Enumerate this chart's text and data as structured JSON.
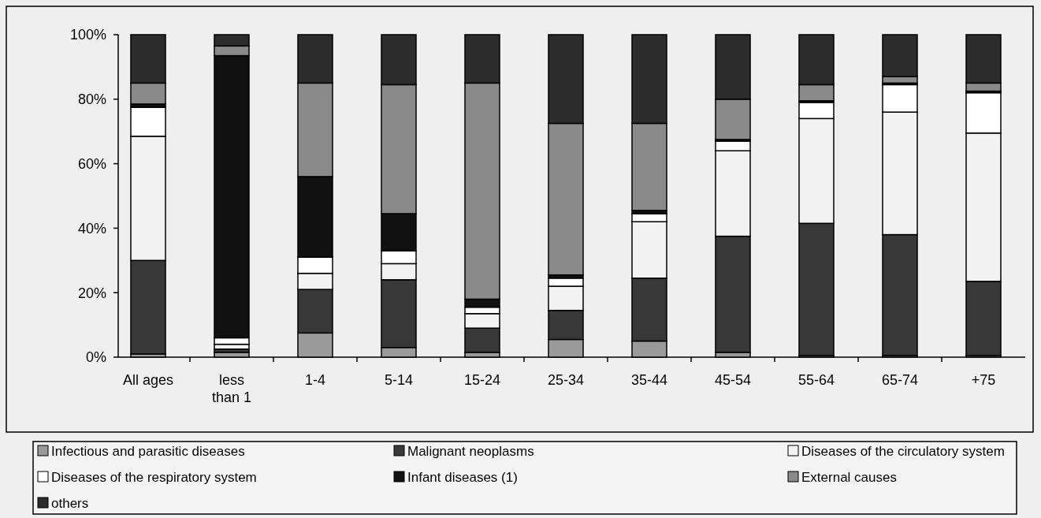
{
  "chart_data": {
    "type": "bar",
    "stacked": true,
    "categories": [
      "All ages",
      "less than 1",
      "1-4",
      "5-14",
      "15-24",
      "25-34",
      "35-44",
      "45-54",
      "55-64",
      "65-74",
      "+75"
    ],
    "series": [
      {
        "name": "Infectious and parasitic diseases",
        "color": "#9a9a9a",
        "values": [
          1,
          1.5,
          7.5,
          3,
          1.5,
          5.5,
          5,
          1.5,
          0.5,
          0.5,
          0.5
        ]
      },
      {
        "name": "Malignant neoplasms",
        "color": "#383838",
        "values": [
          29,
          1,
          13.5,
          21,
          7.5,
          9,
          19.5,
          36,
          41,
          37.5,
          23
        ]
      },
      {
        "name": "Diseases of the circulatory system",
        "color": "#f2f2f2",
        "values": [
          38.5,
          1.5,
          5,
          5,
          4.5,
          7.5,
          17.5,
          26.5,
          32.5,
          38,
          46
        ]
      },
      {
        "name": "Diseases of the respiratory system",
        "color": "#ffffff",
        "values": [
          9,
          2,
          5,
          4,
          2,
          2.5,
          2.5,
          3,
          5,
          8.5,
          12.5
        ]
      },
      {
        "name": "Infant diseases (1)",
        "color": "#111111",
        "values": [
          1,
          87.5,
          25,
          11.5,
          2.5,
          1,
          1,
          0.5,
          0.5,
          0.5,
          0.5
        ]
      },
      {
        "name": "External causes",
        "color": "#8a8a8a",
        "values": [
          6.5,
          3,
          29,
          40,
          67,
          47,
          27,
          12.5,
          5,
          2,
          2.5
        ]
      },
      {
        "name": "others",
        "color": "#2c2c2c",
        "values": [
          15,
          3.5,
          15,
          15.5,
          15,
          27.5,
          27.5,
          20,
          15.5,
          13,
          15
        ]
      }
    ],
    "ylim": [
      0,
      100
    ],
    "yticks": [
      {
        "value": 0,
        "label": "0%"
      },
      {
        "value": 20,
        "label": "20%"
      },
      {
        "value": 40,
        "label": "40%"
      },
      {
        "value": 60,
        "label": "60%"
      },
      {
        "value": 80,
        "label": "80%"
      },
      {
        "value": 100,
        "label": "100%"
      }
    ],
    "grid": false,
    "legend": "bottom"
  }
}
